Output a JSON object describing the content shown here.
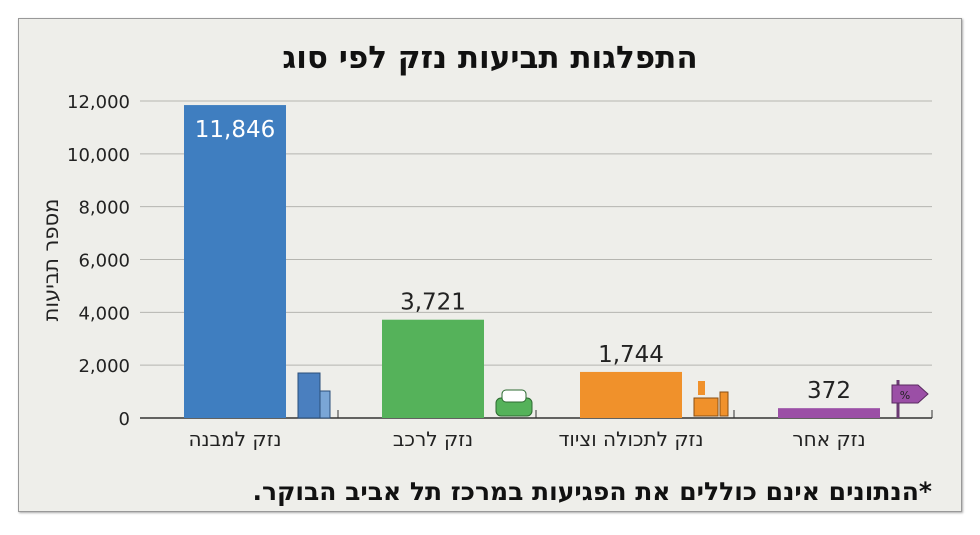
{
  "chart_data": {
    "type": "bar",
    "title": "התפלגות תביעות נזק לפי סוג",
    "ylabel": "מספר תביעות",
    "xlabel": "",
    "categories": [
      "נזק למבנה",
      "נזק לרכב",
      "נזק לתכולה וציוד",
      "נזק אחר"
    ],
    "values": [
      11846,
      3721,
      1744,
      372
    ],
    "data_labels": [
      "11,846",
      "3,721",
      "1,744",
      "372"
    ],
    "colors": [
      "#3f7ec0",
      "#55b25a",
      "#f0912b",
      "#9b4fa6"
    ],
    "icons": [
      "building-icon",
      "car-icon",
      "appliance-icon",
      "percent-sign-icon"
    ],
    "ylim": [
      0,
      12000
    ],
    "yticks": [
      0,
      2000,
      4000,
      6000,
      8000,
      10000,
      12000
    ],
    "ytick_labels": [
      "0",
      "2,000",
      "4,000",
      "6,000",
      "8,000",
      "10,000",
      "12,000"
    ],
    "grid": true,
    "footnote": "*הנתונים אינם כוללים את הפגיעות במרכז תל אביב הבוקר."
  }
}
